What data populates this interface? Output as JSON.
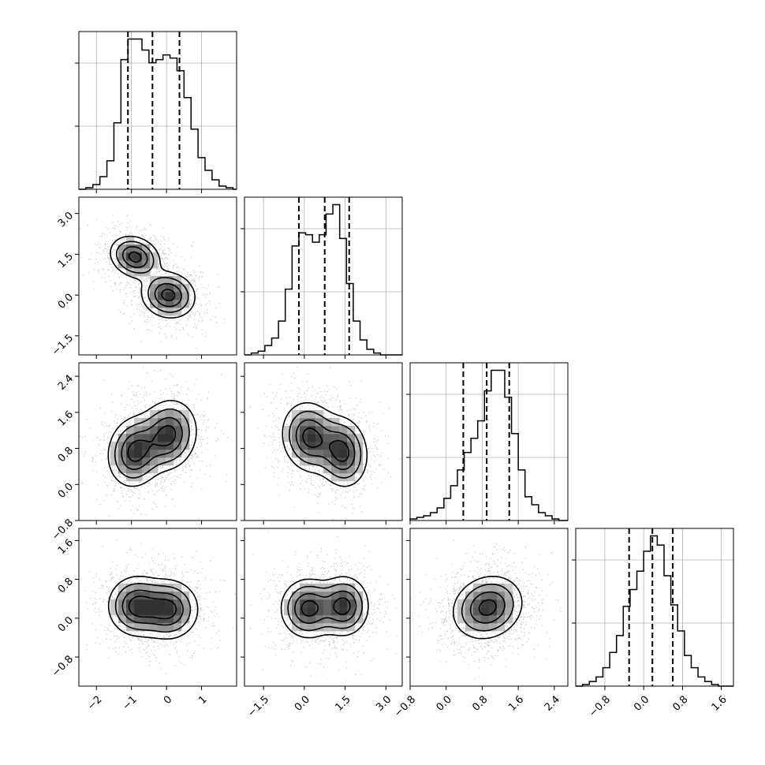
{
  "chart_data": {
    "type": "corner",
    "parameters": [
      {
        "name": "",
        "range": [
          -2.5,
          2.0
        ],
        "ticks": [
          -2,
          -1,
          0,
          1
        ],
        "tick_labels": [
          "−2",
          "−1",
          "0",
          "1"
        ],
        "quantiles": [
          -1.1,
          -0.4,
          0.37
        ]
      },
      {
        "name": "",
        "range": [
          -2.2,
          3.6
        ],
        "ticks": [
          -1.5,
          0.0,
          1.5,
          3.0
        ],
        "tick_labels": [
          "−1.5",
          "0.0",
          "1.5",
          "3.0"
        ],
        "quantiles": [
          -0.2,
          0.75,
          1.65
        ]
      },
      {
        "name": "",
        "range": [
          -0.8,
          2.7
        ],
        "ticks": [
          -0.8,
          0.0,
          0.8,
          1.6,
          2.4
        ],
        "tick_labels": [
          "−0.8",
          "0.0",
          "0.8",
          "1.6",
          "2.4"
        ],
        "quantiles": [
          0.38,
          0.9,
          1.4
        ]
      },
      {
        "name": "",
        "range": [
          -1.4,
          1.85
        ],
        "ticks": [
          -0.8,
          0.0,
          0.8,
          1.6
        ],
        "tick_labels": [
          "−0.8",
          "0.0",
          "0.8",
          "1.6"
        ],
        "quantiles": [
          -0.3,
          0.18,
          0.6
        ]
      }
    ],
    "histograms": [
      {
        "param": 0,
        "bin_edges_start": -2.5,
        "bin_width": 0.2,
        "counts": [
          0,
          1,
          3,
          8,
          18,
          42,
          82,
          95,
          95,
          88,
          80,
          82,
          85,
          83,
          75,
          58,
          38,
          20,
          12,
          6,
          2,
          1,
          0
        ]
      },
      {
        "param": 1,
        "bin_edges_start": -2.2,
        "bin_width": 0.25,
        "counts": [
          0,
          1,
          2,
          5,
          9,
          18,
          35,
          58,
          65,
          64,
          60,
          64,
          75,
          80,
          62,
          38,
          18,
          8,
          3,
          1,
          0,
          0,
          0
        ]
      },
      {
        "param": 2,
        "bin_edges_start": -0.8,
        "bin_width": 0.15,
        "counts": [
          1,
          2,
          3,
          5,
          8,
          14,
          22,
          32,
          43,
          52,
          63,
          82,
          95,
          95,
          78,
          55,
          32,
          15,
          10,
          5,
          3,
          1,
          0
        ]
      },
      {
        "param": 3,
        "bin_edges_start": -1.4,
        "bin_width": 0.14,
        "counts": [
          0,
          1,
          3,
          6,
          12,
          22,
          33,
          52,
          63,
          75,
          88,
          98,
          92,
          72,
          53,
          36,
          20,
          12,
          6,
          3,
          1,
          0,
          0
        ]
      }
    ],
    "joint_modes": [
      {
        "x": 0,
        "y": 1,
        "modes": [
          {
            "mx": -0.9,
            "my": 1.4,
            "sx": 0.35,
            "sy": 0.38,
            "rho": -0.2,
            "w": 1.0
          },
          {
            "mx": 0.05,
            "my": 0.0,
            "sx": 0.38,
            "sy": 0.42,
            "rho": -0.1,
            "w": 1.0
          }
        ]
      },
      {
        "x": 0,
        "y": 2,
        "modes": [
          {
            "mx": -0.9,
            "my": 0.72,
            "sx": 0.38,
            "sy": 0.38,
            "rho": 0.1,
            "w": 1.0
          },
          {
            "mx": 0.05,
            "my": 1.1,
            "sx": 0.4,
            "sy": 0.38,
            "rho": 0.1,
            "w": 1.0
          }
        ]
      },
      {
        "x": 1,
        "y": 2,
        "modes": [
          {
            "mx": 0.2,
            "my": 1.05,
            "sx": 0.5,
            "sy": 0.38,
            "rho": -0.1,
            "w": 1.0
          },
          {
            "mx": 1.4,
            "my": 0.72,
            "sx": 0.45,
            "sy": 0.38,
            "rho": -0.1,
            "w": 1.0
          }
        ]
      },
      {
        "x": 0,
        "y": 3,
        "modes": [
          {
            "mx": -0.85,
            "my": 0.25,
            "sx": 0.4,
            "sy": 0.3,
            "rho": 0.0,
            "w": 1.0
          },
          {
            "mx": 0.05,
            "my": 0.18,
            "sx": 0.42,
            "sy": 0.3,
            "rho": 0.0,
            "w": 1.0
          }
        ]
      },
      {
        "x": 1,
        "y": 3,
        "modes": [
          {
            "mx": 0.15,
            "my": 0.2,
            "sx": 0.5,
            "sy": 0.3,
            "rho": 0.0,
            "w": 1.0
          },
          {
            "mx": 1.45,
            "my": 0.25,
            "sx": 0.45,
            "sy": 0.3,
            "rho": 0.0,
            "w": 1.0
          }
        ]
      },
      {
        "x": 2,
        "y": 3,
        "modes": [
          {
            "mx": 0.92,
            "my": 0.22,
            "sx": 0.38,
            "sy": 0.32,
            "rho": 0.15,
            "w": 1.0
          }
        ]
      }
    ],
    "contour_levels": [
      0.5,
      1.0,
      1.5,
      2.0
    ],
    "grid": true,
    "title": "",
    "xlabel": "",
    "ylabel": ""
  }
}
